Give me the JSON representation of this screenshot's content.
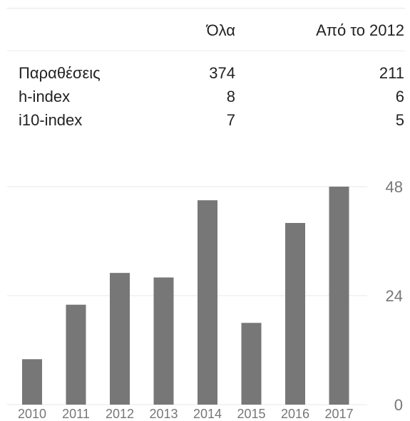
{
  "table": {
    "headers": {
      "all": "Όλα",
      "since": "Από το 2012"
    },
    "rows": [
      {
        "label": "Παραθέσεις",
        "all": "374",
        "since": "211"
      },
      {
        "label": "h-index",
        "all": "8",
        "since": "6"
      },
      {
        "label": "i10-index",
        "all": "7",
        "since": "5"
      }
    ]
  },
  "chart_data": {
    "type": "bar",
    "categories": [
      "2010",
      "2011",
      "2012",
      "2013",
      "2014",
      "2015",
      "2016",
      "2017"
    ],
    "values": [
      10,
      22,
      29,
      28,
      45,
      18,
      40,
      48
    ],
    "yticks": [
      "0",
      "24",
      "48"
    ],
    "ylim": [
      0,
      48
    ],
    "grid": true,
    "bar_color": "#777777"
  }
}
